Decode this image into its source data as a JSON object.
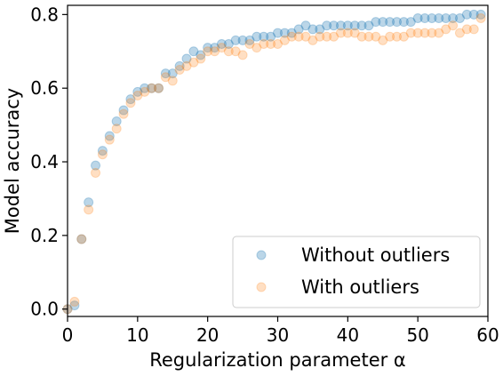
{
  "chart_data": {
    "type": "scatter",
    "xlabel": "Regularization parameter α",
    "ylabel": "Model accuracy",
    "xlim": [
      0,
      60
    ],
    "ylim": [
      -0.02,
      0.825
    ],
    "x_ticks": [
      0,
      10,
      20,
      30,
      40,
      50,
      60
    ],
    "x_tick_labels": [
      "0",
      "10",
      "20",
      "30",
      "40",
      "50",
      "60"
    ],
    "y_ticks": [
      0.0,
      0.2,
      0.4,
      0.6,
      0.8
    ],
    "y_tick_labels": [
      "0.0",
      "0.2",
      "0.4",
      "0.6",
      "0.8"
    ],
    "grid": false,
    "legend_position": "bottom-right",
    "series": [
      {
        "name": "Without outliers",
        "color": "#1f77b4",
        "alpha": 0.3,
        "x": [
          0,
          1,
          2,
          3,
          4,
          5,
          6,
          7,
          8,
          9,
          10,
          11,
          12,
          13,
          14,
          15,
          16,
          17,
          18,
          19,
          20,
          21,
          22,
          23,
          24,
          25,
          26,
          27,
          28,
          29,
          30,
          31,
          32,
          33,
          34,
          35,
          36,
          37,
          38,
          39,
          40,
          41,
          42,
          43,
          44,
          45,
          46,
          47,
          48,
          49,
          50,
          51,
          52,
          53,
          54,
          55,
          56,
          57,
          58,
          59
        ],
        "y": [
          0.0,
          0.01,
          0.19,
          0.29,
          0.39,
          0.43,
          0.47,
          0.51,
          0.54,
          0.57,
          0.59,
          0.6,
          0.6,
          0.6,
          0.64,
          0.64,
          0.66,
          0.68,
          0.7,
          0.69,
          0.71,
          0.71,
          0.72,
          0.72,
          0.73,
          0.73,
          0.73,
          0.74,
          0.74,
          0.74,
          0.75,
          0.75,
          0.75,
          0.76,
          0.77,
          0.76,
          0.76,
          0.77,
          0.77,
          0.77,
          0.77,
          0.77,
          0.77,
          0.77,
          0.78,
          0.78,
          0.78,
          0.78,
          0.78,
          0.78,
          0.79,
          0.79,
          0.79,
          0.79,
          0.79,
          0.79,
          0.79,
          0.8,
          0.8,
          0.8
        ]
      },
      {
        "name": "With outliers",
        "color": "#ff7f0e",
        "alpha": 0.25,
        "x": [
          0,
          1,
          2,
          3,
          4,
          5,
          6,
          7,
          8,
          9,
          10,
          11,
          12,
          13,
          14,
          15,
          16,
          17,
          18,
          19,
          20,
          21,
          22,
          23,
          24,
          25,
          26,
          27,
          28,
          29,
          30,
          31,
          32,
          33,
          34,
          35,
          36,
          37,
          38,
          39,
          40,
          41,
          42,
          43,
          44,
          45,
          46,
          47,
          48,
          49,
          50,
          51,
          52,
          53,
          54,
          55,
          56,
          57,
          58,
          59
        ],
        "y": [
          0.0,
          0.02,
          0.19,
          0.27,
          0.37,
          0.42,
          0.46,
          0.49,
          0.53,
          0.56,
          0.58,
          0.59,
          0.6,
          0.6,
          0.63,
          0.62,
          0.65,
          0.66,
          0.67,
          0.68,
          0.7,
          0.7,
          0.71,
          0.7,
          0.7,
          0.69,
          0.72,
          0.71,
          0.72,
          0.72,
          0.72,
          0.73,
          0.74,
          0.74,
          0.74,
          0.73,
          0.74,
          0.74,
          0.74,
          0.75,
          0.75,
          0.75,
          0.74,
          0.74,
          0.74,
          0.73,
          0.74,
          0.74,
          0.74,
          0.75,
          0.75,
          0.75,
          0.75,
          0.75,
          0.76,
          0.77,
          0.75,
          0.76,
          0.76,
          0.79
        ]
      }
    ]
  }
}
